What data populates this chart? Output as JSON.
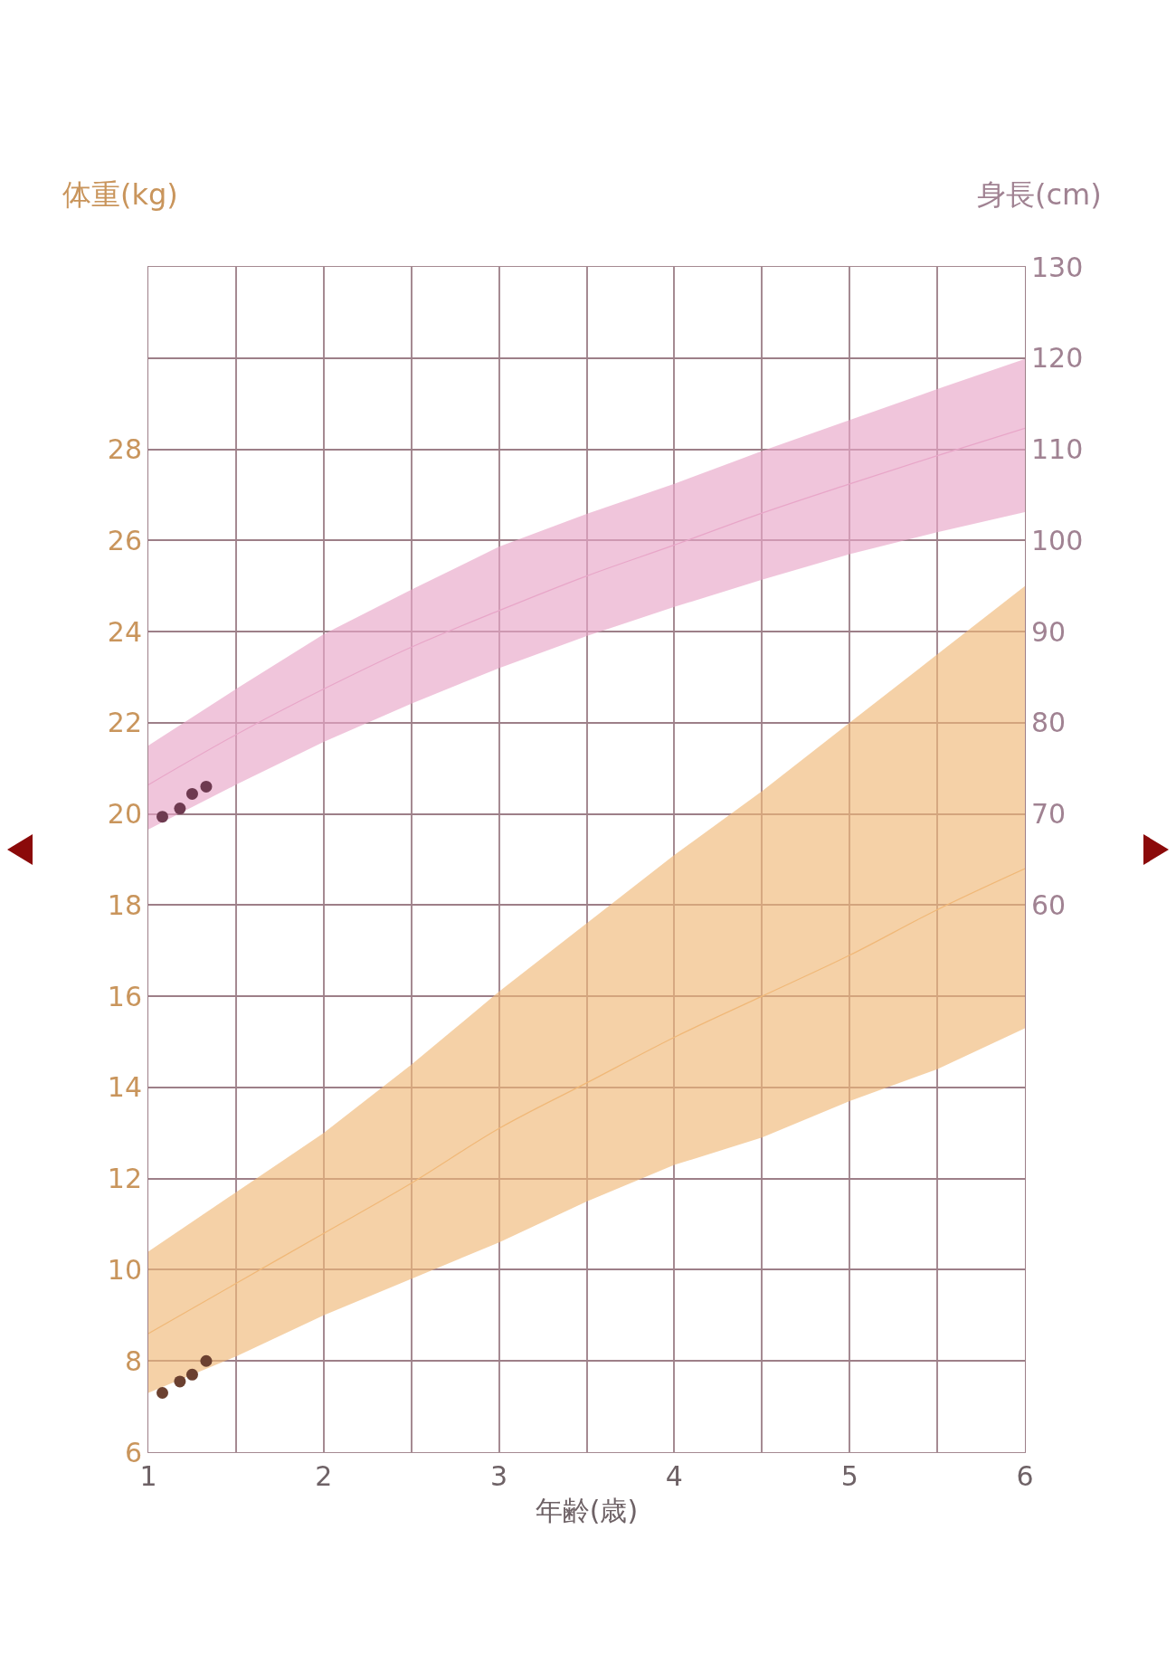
{
  "chart_data": {
    "type": "line",
    "xlabel": "年齢(歳)",
    "ylabel": "体重(kg)",
    "y2label": "身長(cm)",
    "xlim": [
      1,
      6
    ],
    "xticks": [
      1,
      {
        "value": 1.5,
        "label": null
      },
      2,
      {
        "value": 2.5,
        "label": null
      },
      3,
      {
        "value": 3.5,
        "label": null
      },
      4,
      {
        "value": 4.5,
        "label": null
      },
      5,
      {
        "value": 5.5,
        "label": null
      },
      6
    ],
    "ylim": [
      6,
      32
    ],
    "yticks": [
      6,
      8,
      10,
      12,
      14,
      16,
      18,
      20,
      22,
      24,
      26,
      28,
      {
        "value": 30,
        "label": null
      },
      {
        "value": 32,
        "label": null
      }
    ],
    "y2lim": [
      0,
      130
    ],
    "y2ticks": [
      60,
      70,
      80,
      90,
      100,
      110,
      120,
      130
    ],
    "grid": true,
    "series": [
      {
        "type": "line",
        "axis": "y2",
        "color": "#e8a6c8",
        "x": [
          1,
          1.5,
          2,
          2.5,
          3,
          3.5,
          4,
          4.5,
          5,
          5.5,
          6
        ],
        "values": [
          73.2,
          78.7,
          83.7,
          88.3,
          92.3,
          96.1,
          99.5,
          103,
          106.2,
          109.3,
          112.3
        ],
        "lower": [
          68.3,
          73.2,
          77.9,
          82.1,
          86,
          89.5,
          92.7,
          95.7,
          98.5,
          100.9,
          103.1
        ],
        "upper": [
          77.5,
          83.7,
          89.7,
          94.6,
          99.3,
          102.9,
          106.2,
          109.8,
          113.2,
          116.6,
          119.9
        ]
      },
      {
        "type": "line",
        "color": "#f0b878",
        "x": [
          1,
          1.5,
          2,
          2.5,
          3,
          3.5,
          4,
          4.5,
          5,
          5.5,
          6
        ],
        "values": [
          8.6,
          9.7,
          10.8,
          11.9,
          13.1,
          14.1,
          15.1,
          16,
          16.9,
          17.9,
          18.8
        ],
        "lower": [
          7.3,
          8.1,
          9,
          9.8,
          10.6,
          11.5,
          12.3,
          12.9,
          13.7,
          14.4,
          15.3
        ],
        "upper": [
          10.4,
          11.7,
          13,
          14.5,
          16.1,
          17.6,
          19.1,
          20.5,
          22,
          23.5,
          25
        ]
      },
      {
        "type": "scatter",
        "axis": "y2",
        "marker": "circle",
        "color": "#6e3a50",
        "x": [
          1.08,
          1.18,
          1.25,
          1.33
        ],
        "values": [
          69.7,
          70.6,
          72.2,
          73
        ]
      },
      {
        "type": "scatter",
        "marker": "circle",
        "color": "#6b4030",
        "x": [
          1.08,
          1.18,
          1.25,
          1.33
        ],
        "values": [
          7.3,
          7.55,
          7.7,
          8
        ]
      }
    ]
  }
}
